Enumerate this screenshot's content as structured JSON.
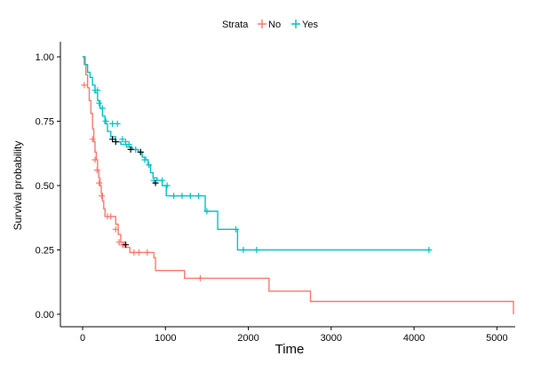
{
  "chart_data": {
    "type": "line",
    "subtype": "kaplan-meier",
    "title": "",
    "xlabel": "Time",
    "ylabel": "Survival probability",
    "xlim": [
      0,
      5200
    ],
    "ylim": [
      0,
      1
    ],
    "xticks": [
      0,
      1000,
      2000,
      3000,
      4000,
      5000
    ],
    "yticks": [
      0,
      0.25,
      0.5,
      0.75,
      1
    ],
    "ytick_labels": [
      "0.00",
      "0.25",
      "0.50",
      "0.75",
      "1.00"
    ],
    "grid": false,
    "legend": {
      "title": "Strata",
      "placement": "top"
    },
    "series": [
      {
        "name": "No",
        "color": "#F8766D",
        "steps": [
          [
            0,
            1.0
          ],
          [
            20,
            0.97
          ],
          [
            40,
            0.93
          ],
          [
            60,
            0.88
          ],
          [
            80,
            0.83
          ],
          [
            100,
            0.78
          ],
          [
            120,
            0.72
          ],
          [
            135,
            0.67
          ],
          [
            150,
            0.63
          ],
          [
            165,
            0.6
          ],
          [
            180,
            0.56
          ],
          [
            195,
            0.53
          ],
          [
            210,
            0.5
          ],
          [
            225,
            0.47
          ],
          [
            240,
            0.44
          ],
          [
            255,
            0.41
          ],
          [
            270,
            0.38
          ],
          [
            400,
            0.35
          ],
          [
            430,
            0.31
          ],
          [
            460,
            0.28
          ],
          [
            520,
            0.26
          ],
          [
            570,
            0.24
          ],
          [
            860,
            0.22
          ],
          [
            880,
            0.17
          ],
          [
            1230,
            0.14
          ],
          [
            2250,
            0.09
          ],
          [
            2750,
            0.05
          ],
          [
            5200,
            0.05
          ],
          [
            5200,
            0.0
          ]
        ],
        "censors": [
          [
            20,
            0.89
          ],
          [
            120,
            0.68
          ],
          [
            150,
            0.6
          ],
          [
            175,
            0.56
          ],
          [
            200,
            0.51
          ],
          [
            230,
            0.46
          ],
          [
            300,
            0.38
          ],
          [
            340,
            0.38
          ],
          [
            400,
            0.33
          ],
          [
            440,
            0.28
          ],
          [
            480,
            0.27
          ],
          [
            500,
            0.27
          ],
          [
            620,
            0.24
          ],
          [
            680,
            0.24
          ],
          [
            780,
            0.24
          ],
          [
            1420,
            0.14
          ]
        ]
      },
      {
        "name": "Yes",
        "color": "#00BFC4",
        "steps": [
          [
            0,
            1.0
          ],
          [
            30,
            0.97
          ],
          [
            60,
            0.94
          ],
          [
            90,
            0.92
          ],
          [
            120,
            0.89
          ],
          [
            150,
            0.86
          ],
          [
            180,
            0.83
          ],
          [
            210,
            0.8
          ],
          [
            240,
            0.77
          ],
          [
            270,
            0.74
          ],
          [
            300,
            0.71
          ],
          [
            340,
            0.69
          ],
          [
            400,
            0.67
          ],
          [
            460,
            0.66
          ],
          [
            530,
            0.65
          ],
          [
            600,
            0.64
          ],
          [
            670,
            0.63
          ],
          [
            720,
            0.61
          ],
          [
            760,
            0.6
          ],
          [
            790,
            0.58
          ],
          [
            820,
            0.55
          ],
          [
            850,
            0.53
          ],
          [
            900,
            0.52
          ],
          [
            960,
            0.5
          ],
          [
            1010,
            0.46
          ],
          [
            1480,
            0.4
          ],
          [
            1630,
            0.33
          ],
          [
            1870,
            0.25
          ],
          [
            4200,
            0.25
          ]
        ],
        "censors": [
          [
            150,
            0.87
          ],
          [
            180,
            0.87
          ],
          [
            200,
            0.82
          ],
          [
            240,
            0.8
          ],
          [
            280,
            0.75
          ],
          [
            360,
            0.74
          ],
          [
            420,
            0.74
          ],
          [
            480,
            0.68
          ],
          [
            520,
            0.67
          ],
          [
            560,
            0.66
          ],
          [
            640,
            0.64
          ],
          [
            700,
            0.63
          ],
          [
            750,
            0.6
          ],
          [
            800,
            0.58
          ],
          [
            860,
            0.52
          ],
          [
            960,
            0.52
          ],
          [
            1020,
            0.5
          ],
          [
            1100,
            0.46
          ],
          [
            1200,
            0.46
          ],
          [
            1300,
            0.46
          ],
          [
            1400,
            0.46
          ],
          [
            1500,
            0.4
          ],
          [
            1850,
            0.33
          ],
          [
            1940,
            0.25
          ],
          [
            2100,
            0.25
          ],
          [
            4180,
            0.25
          ]
        ]
      },
      {
        "name": "",
        "color": "#000000",
        "censors": [
          [
            360,
            0.68
          ],
          [
            400,
            0.67
          ],
          [
            580,
            0.64
          ],
          [
            700,
            0.63
          ],
          [
            880,
            0.51
          ],
          [
            520,
            0.27
          ]
        ]
      }
    ]
  }
}
